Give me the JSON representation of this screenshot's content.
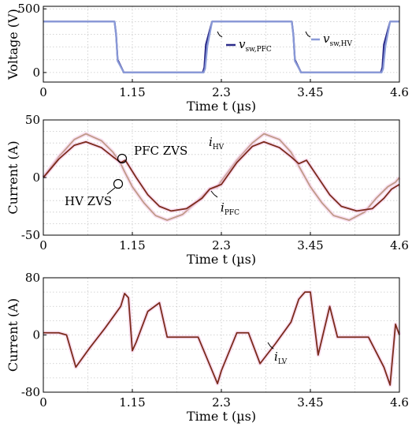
{
  "chart_data": [
    {
      "type": "line",
      "xlabel": "Time t (µs)",
      "ylabel": "Voltage (V)",
      "xlim": [
        0,
        4.6
      ],
      "ylim": [
        -75,
        520
      ],
      "x_ticks": [
        "0",
        "1.15",
        "2.3",
        "3.45",
        "4.6"
      ],
      "y_ticks": [
        "0",
        "500"
      ],
      "grid": true,
      "series": [
        {
          "name": "v_sw,PFC",
          "color": "#2b2b8a",
          "x": [
            0,
            0.92,
            0.94,
            0.96,
            1.04,
            1.06,
            2.06,
            2.08,
            2.1,
            2.18,
            2.2,
            3.21,
            3.23,
            3.25,
            3.33,
            3.35,
            4.36,
            4.38,
            4.4,
            4.48,
            4.5,
            4.6
          ],
          "y": [
            400,
            400,
            300,
            100,
            0,
            0,
            0,
            40,
            220,
            400,
            400,
            400,
            300,
            100,
            0,
            0,
            0,
            40,
            220,
            400,
            400,
            400
          ]
        },
        {
          "name": "v_sw,HV",
          "color": "#8a9ad8",
          "x": [
            0,
            0.92,
            0.94,
            0.96,
            1.04,
            1.06,
            2.07,
            2.09,
            2.12,
            2.18,
            2.2,
            3.21,
            3.23,
            3.25,
            3.33,
            3.35,
            4.37,
            4.39,
            4.42,
            4.48,
            4.5,
            4.6
          ],
          "y": [
            400,
            400,
            290,
            90,
            0,
            0,
            0,
            30,
            210,
            400,
            400,
            400,
            290,
            90,
            0,
            0,
            0,
            30,
            210,
            400,
            400,
            400
          ]
        }
      ],
      "annotations": [
        {
          "base": "v",
          "sub": "sw,PFC"
        },
        {
          "base": "v",
          "sub": "sw,HV"
        }
      ]
    },
    {
      "type": "line",
      "xlabel": "Time t (µs)",
      "ylabel": "Current (A)",
      "xlim": [
        0,
        4.6
      ],
      "ylim": [
        -50,
        50
      ],
      "x_ticks": [
        "0",
        "1.15",
        "2.3",
        "3.45",
        "4.6"
      ],
      "y_ticks": [
        "50",
        "0",
        "-50"
      ],
      "grid": true,
      "series": [
        {
          "name": "i_HV",
          "color": "#c09a88",
          "x": [
            0,
            0.2,
            0.4,
            0.55,
            0.75,
            0.9,
            1.0,
            1.05,
            1.15,
            1.3,
            1.45,
            1.6,
            1.8,
            2.0,
            2.15,
            2.25,
            2.3,
            2.5,
            2.7,
            2.85,
            3.05,
            3.2,
            3.3,
            3.45,
            3.6,
            3.75,
            3.95,
            4.15,
            4.3,
            4.45,
            4.55,
            4.6
          ],
          "y": [
            0,
            18,
            33,
            38,
            32,
            22,
            12,
            5,
            -8,
            -22,
            -33,
            -37,
            -32,
            -20,
            -10,
            -8,
            -3,
            15,
            30,
            38,
            33,
            22,
            10,
            -8,
            -22,
            -33,
            -37,
            -30,
            -18,
            -8,
            -4,
            0
          ]
        },
        {
          "name": "i_PFC",
          "color": "#7b2a1c",
          "x": [
            0,
            0.2,
            0.4,
            0.55,
            0.75,
            0.9,
            1.0,
            1.06,
            1.2,
            1.35,
            1.5,
            1.65,
            1.85,
            2.05,
            2.15,
            2.3,
            2.5,
            2.7,
            2.85,
            3.05,
            3.2,
            3.3,
            3.4,
            3.55,
            3.7,
            3.85,
            4.05,
            4.25,
            4.4,
            4.5,
            4.6
          ],
          "y": [
            0,
            16,
            28,
            31,
            26,
            18,
            13,
            15,
            0,
            -15,
            -25,
            -29,
            -27,
            -18,
            -10,
            -6,
            13,
            27,
            31,
            26,
            18,
            12,
            15,
            0,
            -15,
            -25,
            -29,
            -27,
            -18,
            -10,
            -6
          ]
        }
      ],
      "annotations": [
        {
          "base": "i",
          "sub": "HV"
        },
        {
          "base": "i",
          "sub": "PFC"
        },
        {
          "text": "PFC ZVS"
        },
        {
          "text": "HV ZVS"
        }
      ]
    },
    {
      "type": "line",
      "xlabel": "Time t (µs)",
      "ylabel": "Current (A)",
      "xlim": [
        0,
        4.6
      ],
      "ylim": [
        -80,
        80
      ],
      "x_ticks": [
        "0",
        "1.15",
        "2.3",
        "3.45",
        "4.6"
      ],
      "y_ticks": [
        "80",
        "0",
        "-80"
      ],
      "grid": true,
      "series": [
        {
          "name": "i_LV",
          "color": "#7b2a1c",
          "x": [
            0,
            0.2,
            0.3,
            0.42,
            0.6,
            0.8,
            1.0,
            1.05,
            1.1,
            1.15,
            1.2,
            1.35,
            1.5,
            1.6,
            1.8,
            2.0,
            2.2,
            2.25,
            2.3,
            2.5,
            2.65,
            2.8,
            3.0,
            3.2,
            3.3,
            3.38,
            3.45,
            3.55,
            3.7,
            3.8,
            4.0,
            4.2,
            4.4,
            4.48,
            4.55,
            4.6
          ],
          "y": [
            3,
            3,
            0,
            -45,
            -18,
            10,
            40,
            58,
            52,
            -22,
            -10,
            33,
            45,
            -3,
            -3,
            -3,
            -55,
            -68,
            -50,
            3,
            3,
            -40,
            -12,
            18,
            50,
            60,
            60,
            -28,
            40,
            -3,
            -3,
            -3,
            -45,
            -70,
            15,
            0
          ]
        }
      ],
      "annotations": [
        {
          "base": "i",
          "sub": "LV"
        }
      ]
    }
  ]
}
